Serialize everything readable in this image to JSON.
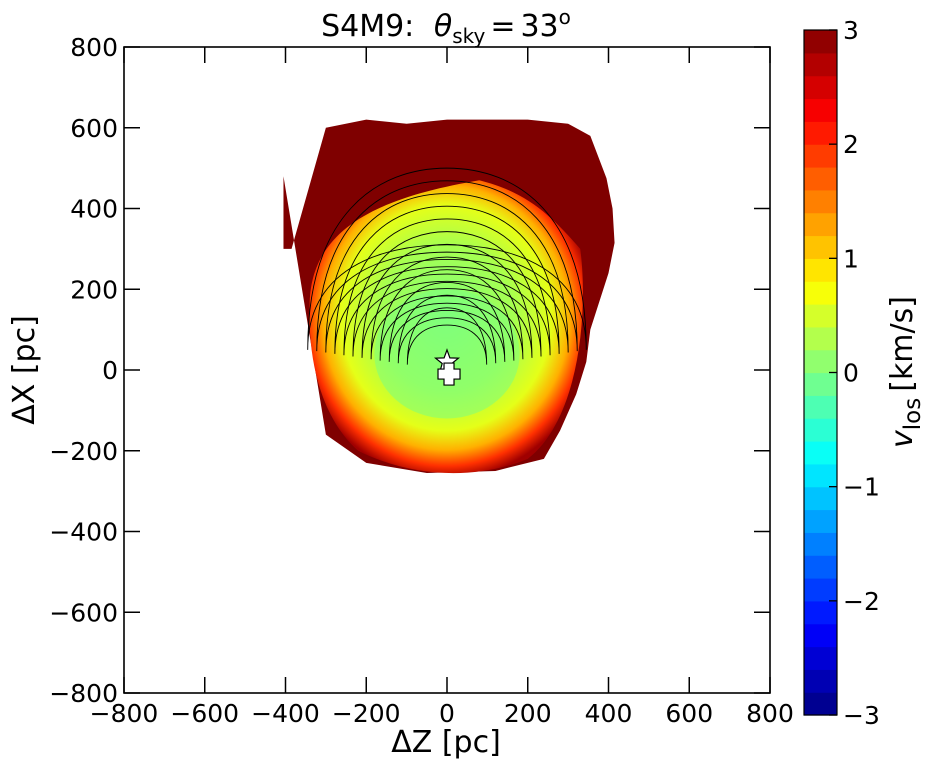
{
  "chart_data": {
    "type": "heatmap",
    "title": "S4M9:",
    "title_math": {
      "symbol": "θ",
      "subscript": "sky",
      "equals": "=",
      "value": "33",
      "superscript": "o"
    },
    "xlabel": "ΔZ [pc]",
    "ylabel": "ΔX [pc]",
    "xlim": [
      -800,
      800
    ],
    "ylim": [
      -800,
      800
    ],
    "xticks": [
      -800,
      -600,
      -400,
      -200,
      0,
      200,
      400,
      600,
      800
    ],
    "yticks": [
      -800,
      -600,
      -400,
      -200,
      0,
      200,
      400,
      600,
      800
    ],
    "xtick_labels": [
      "−800",
      "−600",
      "−400",
      "−200",
      "0",
      "200",
      "400",
      "600",
      "800"
    ],
    "ytick_labels": [
      "−800",
      "−600",
      "−400",
      "−200",
      "0",
      "200",
      "400",
      "600",
      "800"
    ],
    "colorbar": {
      "label_symbol": "v",
      "label_subscript": "los",
      "label_unit": "[km/s]",
      "range": [
        -3,
        3
      ],
      "ticks": [
        -3,
        -2,
        -1,
        0,
        1,
        2,
        3
      ],
      "tick_labels": [
        "−3",
        "−2",
        "−1",
        "0",
        "1",
        "2",
        "3"
      ],
      "levels": 30,
      "colormap": "jet"
    },
    "data_region": {
      "color_top": "#7f0000",
      "center_velocity": 0.4,
      "outer_boundary_z": [
        -405,
        -405,
        -385,
        -300,
        -200,
        -100,
        0,
        100,
        200,
        300,
        355,
        395,
        410,
        415,
        400,
        355,
        345,
        320,
        280,
        240,
        240,
        120,
        -50,
        -200,
        -300,
        -405
      ],
      "outer_boundary_x": [
        480,
        300,
        300,
        600,
        620,
        610,
        620,
        620,
        620,
        610,
        580,
        475,
        400,
        315,
        240,
        100,
        20,
        -60,
        -150,
        -220,
        -220,
        -250,
        -255,
        -230,
        -160,
        480
      ]
    },
    "markers": [
      {
        "name": "star",
        "z": 0,
        "x": 20
      },
      {
        "name": "cross",
        "z": 5,
        "x": -10
      }
    ],
    "contour_levels": 12
  }
}
